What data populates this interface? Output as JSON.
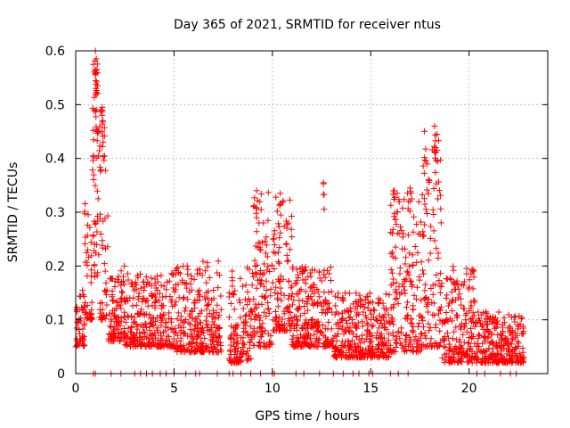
{
  "chart_data": {
    "type": "scatter",
    "title": "Day 365 of 2021, SRMTID for receiver ntus",
    "xlabel": "GPS time / hours",
    "ylabel": "SRMTID / TECUs",
    "xlim": [
      0,
      24
    ],
    "ylim": [
      0,
      0.6
    ],
    "xticks": [
      0,
      5,
      10,
      15,
      20
    ],
    "xtick_labels": [
      "0",
      "5",
      "10",
      "15",
      "20"
    ],
    "yticks": [
      0,
      0.1,
      0.2,
      0.3,
      0.4,
      0.5,
      0.6
    ],
    "ytick_labels": [
      "0",
      "0.1",
      "0.2",
      "0.3",
      "0.4",
      "0.5",
      "0.6"
    ],
    "grid": true,
    "marker": "+",
    "color": "#ff0000",
    "series": [
      {
        "name": "SRMTID",
        "clusters": [
          {
            "x_range": [
              0.0,
              0.45
            ],
            "y_range": [
              0.05,
              0.16
            ]
          },
          {
            "x_range": [
              0.45,
              0.85
            ],
            "y_range": [
              0.1,
              0.34
            ]
          },
          {
            "x_range": [
              0.85,
              1.2
            ],
            "y_range": [
              0.18,
              0.6
            ]
          },
          {
            "x_range": [
              1.2,
              1.65
            ],
            "y_range": [
              0.1,
              0.5
            ]
          },
          {
            "x_range": [
              1.65,
              2.5
            ],
            "y_range": [
              0.06,
              0.2
            ]
          },
          {
            "x_range": [
              2.5,
              5.0
            ],
            "y_range": [
              0.05,
              0.19
            ]
          },
          {
            "x_range": [
              5.0,
              7.4
            ],
            "y_range": [
              0.04,
              0.21
            ]
          },
          {
            "x_range": [
              7.8,
              9.0
            ],
            "y_range": [
              0.02,
              0.2
            ]
          },
          {
            "x_range": [
              9.0,
              10.0
            ],
            "y_range": [
              0.05,
              0.34
            ]
          },
          {
            "x_range": [
              10.0,
              11.0
            ],
            "y_range": [
              0.08,
              0.33
            ]
          },
          {
            "x_range": [
              11.0,
              13.1
            ],
            "y_range": [
              0.05,
              0.2
            ]
          },
          {
            "x_range": [
              13.1,
              16.0
            ],
            "y_range": [
              0.03,
              0.15
            ]
          },
          {
            "x_range": [
              16.0,
              17.6
            ],
            "y_range": [
              0.04,
              0.34
            ]
          },
          {
            "x_range": [
              17.6,
              18.6
            ],
            "y_range": [
              0.05,
              0.46
            ]
          },
          {
            "x_range": [
              18.6,
              20.3
            ],
            "y_range": [
              0.02,
              0.2
            ]
          },
          {
            "x_range": [
              20.3,
              21.6
            ],
            "y_range": [
              0.02,
              0.12
            ]
          },
          {
            "x_range": [
              21.6,
              22.8
            ],
            "y_range": [
              0.02,
              0.11
            ]
          }
        ],
        "peaks": [
          {
            "x": 1.0,
            "y": 0.6
          },
          {
            "x": 1.05,
            "y": 0.585
          },
          {
            "x": 1.08,
            "y": 0.565
          },
          {
            "x": 1.02,
            "y": 0.53
          },
          {
            "x": 1.35,
            "y": 0.495
          },
          {
            "x": 1.38,
            "y": 0.47
          },
          {
            "x": 1.1,
            "y": 0.45
          },
          {
            "x": 0.9,
            "y": 0.405
          },
          {
            "x": 9.2,
            "y": 0.34
          },
          {
            "x": 10.4,
            "y": 0.335
          },
          {
            "x": 12.6,
            "y": 0.355
          },
          {
            "x": 16.2,
            "y": 0.34
          },
          {
            "x": 17.0,
            "y": 0.345
          },
          {
            "x": 18.25,
            "y": 0.46
          },
          {
            "x": 18.3,
            "y": 0.42
          }
        ],
        "zero_points_x": [
          0.9,
          1.0,
          1.8,
          2.3,
          3.0,
          3.3,
          3.6,
          3.9,
          4.3,
          4.6,
          5.0,
          5.6,
          6.1,
          6.3,
          7.2,
          7.8,
          8.0,
          8.4,
          8.9,
          9.4,
          10.0,
          10.1,
          11.2,
          11.6,
          12.4,
          13.1,
          13.6,
          14.1,
          14.4,
          14.9,
          15.1,
          16.0,
          16.4,
          16.9,
          20.4,
          20.8,
          21.6,
          22.1,
          22.4
        ]
      }
    ]
  }
}
